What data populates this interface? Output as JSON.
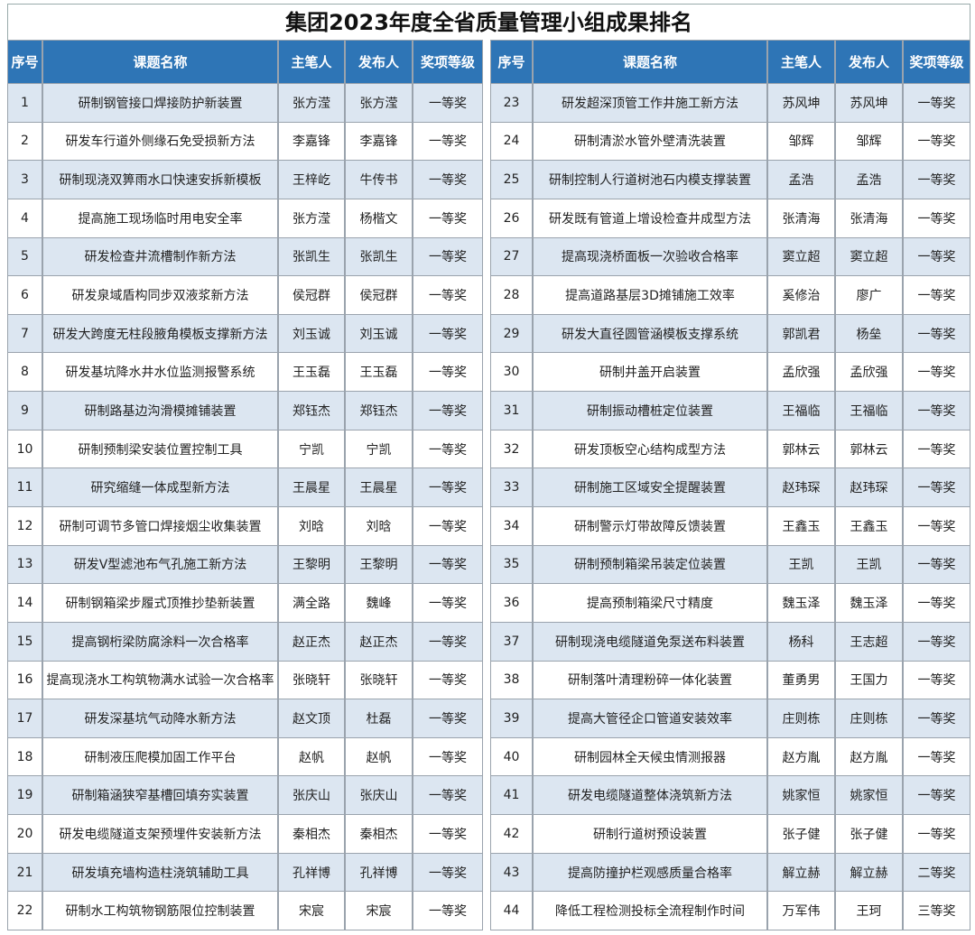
{
  "title": "集团2023年度全省质量管理小组成果排名",
  "headers": [
    "序号",
    "课题名称",
    "主笔人",
    "发布人",
    "奖项等级"
  ],
  "rows": [
    [
      1,
      "研制钢管接口焊接防护新装置",
      "张方滢",
      "张方滢",
      "一等奖"
    ],
    [
      2,
      "研发车行道外侧缘石免受损新方法",
      "李嘉锋",
      "李嘉锋",
      "一等奖"
    ],
    [
      3,
      "研制现浇双箅雨水口快速安拆新模板",
      "王梓屹",
      "牛传书",
      "一等奖"
    ],
    [
      4,
      "提高施工现场临时用电安全率",
      "张方滢",
      "杨楷文",
      "一等奖"
    ],
    [
      5,
      "研发检查井流槽制作新方法",
      "张凯生",
      "张凯生",
      "一等奖"
    ],
    [
      6,
      "研发泉域盾构同步双液浆新方法",
      "侯冠群",
      "侯冠群",
      "一等奖"
    ],
    [
      7,
      "研发大跨度无柱段腋角模板支撑新方法",
      "刘玉诚",
      "刘玉诚",
      "一等奖"
    ],
    [
      8,
      "研发基坑降水井水位监测报警系统",
      "王玉磊",
      "王玉磊",
      "一等奖"
    ],
    [
      9,
      "研制路基边沟滑模摊铺装置",
      "郑钰杰",
      "郑钰杰",
      "一等奖"
    ],
    [
      10,
      "研制预制梁安装位置控制工具",
      "宁凯",
      "宁凯",
      "一等奖"
    ],
    [
      11,
      "研究缩缝一体成型新方法",
      "王晨星",
      "王晨星",
      "一等奖"
    ],
    [
      12,
      "研制可调节多管口焊接烟尘收集装置",
      "刘晗",
      "刘晗",
      "一等奖"
    ],
    [
      13,
      "研发V型滤池布气孔施工新方法",
      "王黎明",
      "王黎明",
      "一等奖"
    ],
    [
      14,
      "研制钢箱梁步履式顶推抄垫新装置",
      "满全路",
      "魏峰",
      "一等奖"
    ],
    [
      15,
      "提高钢桁梁防腐涂料一次合格率",
      "赵正杰",
      "赵正杰",
      "一等奖"
    ],
    [
      16,
      "提高现浇水工构筑物满水试验一次合格率",
      "张晓轩",
      "张晓轩",
      "一等奖"
    ],
    [
      17,
      "研发深基坑气动降水新方法",
      "赵文顶",
      "杜磊",
      "一等奖"
    ],
    [
      18,
      "研制液压爬模加固工作平台",
      "赵帆",
      "赵帆",
      "一等奖"
    ],
    [
      19,
      "研制箱涵狭窄基槽回填夯实装置",
      "张庆山",
      "张庆山",
      "一等奖"
    ],
    [
      20,
      "研发电缆隧道支架预埋件安装新方法",
      "秦相杰",
      "秦相杰",
      "一等奖"
    ],
    [
      21,
      "研发填充墙构造柱浇筑辅助工具",
      "孔祥博",
      "孔祥博",
      "一等奖"
    ],
    [
      22,
      "研制水工构筑物钢筋限位控制装置",
      "宋宸",
      "宋宸",
      "一等奖"
    ],
    [
      23,
      "研发超深顶管工作井施工新方法",
      "苏风坤",
      "苏风坤",
      "一等奖"
    ],
    [
      24,
      "研制清淤水管外壁清洗装置",
      "邹辉",
      "邹辉",
      "一等奖"
    ],
    [
      25,
      "研制控制人行道树池石内模支撑装置",
      "孟浩",
      "孟浩",
      "一等奖"
    ],
    [
      26,
      "研发既有管道上增设检查井成型方法",
      "张清海",
      "张清海",
      "一等奖"
    ],
    [
      27,
      "提高现浇桥面板一次验收合格率",
      "窦立超",
      "窦立超",
      "一等奖"
    ],
    [
      28,
      "提高道路基层3D摊铺施工效率",
      "奚修治",
      "廖广",
      "一等奖"
    ],
    [
      29,
      "研发大直径圆管涵模板支撑系统",
      "郭凯君",
      "杨垒",
      "一等奖"
    ],
    [
      30,
      "研制井盖开启装置",
      "孟欣强",
      "孟欣强",
      "一等奖"
    ],
    [
      31,
      "研制振动槽桩定位装置",
      "王福临",
      "王福临",
      "一等奖"
    ],
    [
      32,
      "研发顶板空心结构成型方法",
      "郭林云",
      "郭林云",
      "一等奖"
    ],
    [
      33,
      "研制施工区域安全提醒装置",
      "赵玮琛",
      "赵玮琛",
      "一等奖"
    ],
    [
      34,
      "研制警示灯带故障反馈装置",
      "王鑫玉",
      "王鑫玉",
      "一等奖"
    ],
    [
      35,
      "研制预制箱梁吊装定位装置",
      "王凯",
      "王凯",
      "一等奖"
    ],
    [
      36,
      "提高预制箱梁尺寸精度",
      "魏玉泽",
      "魏玉泽",
      "一等奖"
    ],
    [
      37,
      "研制现浇电缆隧道免泵送布料装置",
      "杨科",
      "王志超",
      "一等奖"
    ],
    [
      38,
      "研制落叶清理粉碎一体化装置",
      "董勇男",
      "王国力",
      "一等奖"
    ],
    [
      39,
      "提高大管径企口管道安装效率",
      "庄则栋",
      "庄则栋",
      "一等奖"
    ],
    [
      40,
      "研制园林全天候虫情测报器",
      "赵方胤",
      "赵方胤",
      "一等奖"
    ],
    [
      41,
      "研发电缆隧道整体浇筑新方法",
      "姚家恒",
      "姚家恒",
      "一等奖"
    ],
    [
      42,
      "研制行道树预设装置",
      "张子健",
      "张子健",
      "一等奖"
    ],
    [
      43,
      "提高防撞护栏观感质量合格率",
      "解立赫",
      "解立赫",
      "二等奖"
    ],
    [
      44,
      "降低工程检测投标全流程制作时间",
      "万军伟",
      "王珂",
      "三等奖"
    ]
  ]
}
